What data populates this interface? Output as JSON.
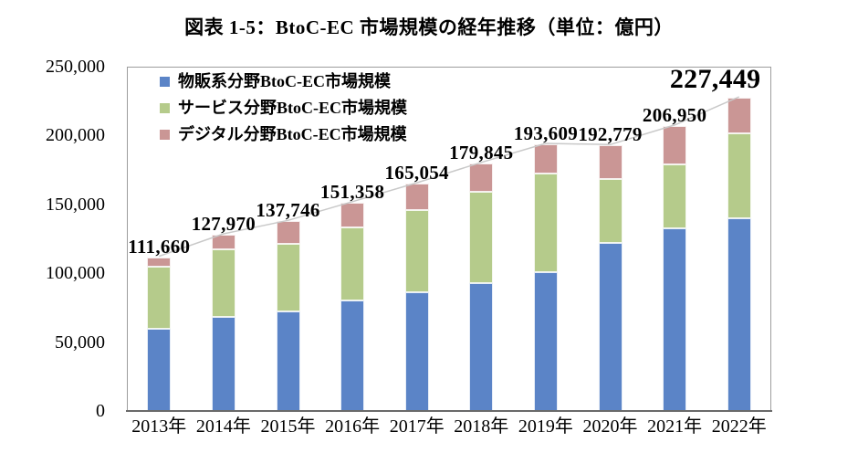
{
  "title": "図表 1-5：BtoC-EC 市場規模の経年推移（単位：億円）",
  "chart_data": {
    "type": "bar",
    "stacked": true,
    "title": "図表 1-5：BtoC-EC 市場規模の経年推移（単位：億円）",
    "unit": "億円",
    "categories": [
      "2013年",
      "2014年",
      "2015年",
      "2016年",
      "2017年",
      "2018年",
      "2019年",
      "2020年",
      "2021年",
      "2022年"
    ],
    "series": [
      {
        "name": "物販系分野BtoC-EC市場規模",
        "color": "#5B84C7",
        "values": [
          59931,
          68043,
          72398,
          80043,
          86008,
          92992,
          100515,
          122333,
          132865,
          139997
        ]
      },
      {
        "name": "サービス分野BtoC-EC市場規模",
        "color": "#B5CB8B",
        "values": [
          44816,
          49014,
          49014,
          53532,
          59568,
          66471,
          71672,
          45832,
          46424,
          61477
        ]
      },
      {
        "name": "デジタル分野BtoC-EC市場規模",
        "color": "#CA9695",
        "values": [
          6913,
          10913,
          16334,
          17783,
          19478,
          20382,
          21422,
          24614,
          27661,
          25975
        ]
      }
    ],
    "totals": [
      111660,
      127970,
      137746,
      151358,
      165054,
      179845,
      193609,
      192779,
      206950,
      227449
    ],
    "total_labels": [
      "111,660",
      "127,970",
      "137,746",
      "151,358",
      "165,054",
      "179,845",
      "193,609",
      "192,779",
      "206,950",
      "227,449"
    ],
    "ylim": [
      0,
      250000
    ],
    "ytick_values": [
      0,
      50000,
      100000,
      150000,
      200000,
      250000
    ],
    "ytick_labels": [
      "0",
      "50,000",
      "100,000",
      "150,000",
      "200,000",
      "250,000"
    ],
    "grid": false,
    "legend_position": "top-left-inside",
    "total_line_color": "#C9C9C9"
  }
}
